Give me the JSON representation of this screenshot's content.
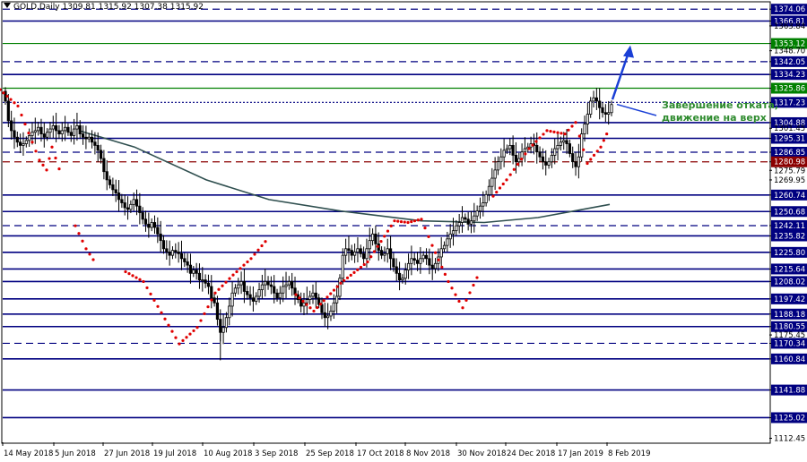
{
  "header": {
    "symbol": "GOLD,Daily",
    "ohlc": "1309.81 1315.92 1307.38 1315.92"
  },
  "annotation": {
    "line1": "Завершение отката,",
    "line2": "движение на верх"
  },
  "colors": {
    "candle": "#000000",
    "sar": "#e00000",
    "ma": "#2f4f4f",
    "support_line": "#000080",
    "green_line": "#008000",
    "arrow": "#1a3fd6",
    "note": "#2e8b2e",
    "label_box": "#000080",
    "label_box_green": "#008000",
    "label_box_red": "#8b0000"
  },
  "chart_data": {
    "type": "candlestick",
    "y_range": [
      1110,
      1378
    ],
    "price_ticks": [
      "1374.06",
      "1366.81",
      "1363.84",
      "1353.12",
      "1348.70",
      "1342.05",
      "1334.23",
      "1325.86",
      "1317.23",
      "1304.88",
      "1301.45",
      "1295.31",
      "1286.85",
      "1280.98",
      "1275.79",
      "1269.95",
      "1260.74",
      "1250.68",
      "1242.11",
      "1235.82",
      "1225.80",
      "1215.64",
      "1208.02",
      "1197.42",
      "1188.18",
      "1180.55",
      "1175.45",
      "1170.34",
      "1160.84",
      "1141.88",
      "1125.02",
      "1112.45"
    ],
    "boxed_levels": [
      {
        "value": 1374.06,
        "label": "1374.06",
        "style": "dashed",
        "color": "navy"
      },
      {
        "value": 1366.81,
        "label": "1366.81",
        "style": "solid",
        "color": "navy"
      },
      {
        "value": 1353.12,
        "label": "1353.12",
        "style": "solid",
        "color": "green"
      },
      {
        "value": 1342.05,
        "label": "1342.05",
        "style": "dashed",
        "color": "navy"
      },
      {
        "value": 1334.23,
        "label": "1334.23",
        "style": "solid",
        "color": "navy"
      },
      {
        "value": 1325.86,
        "label": "1325.86",
        "style": "solid",
        "color": "green"
      },
      {
        "value": 1317.23,
        "label": "1317.23",
        "style": "dotted",
        "color": "navy"
      },
      {
        "value": 1304.88,
        "label": "1304.88",
        "style": "solid",
        "color": "navy"
      },
      {
        "value": 1295.31,
        "label": "1295.31",
        "style": "solid",
        "color": "navy"
      },
      {
        "value": 1286.85,
        "label": "1286.85",
        "style": "dashed",
        "color": "navy"
      },
      {
        "value": 1280.98,
        "label": "1280.98",
        "style": "dashed",
        "color": "red"
      },
      {
        "value": 1260.74,
        "label": "1260.74",
        "style": "solid",
        "color": "navy"
      },
      {
        "value": 1250.68,
        "label": "1250.68",
        "style": "solid",
        "color": "navy"
      },
      {
        "value": 1242.11,
        "label": "1242.11",
        "style": "dashed",
        "color": "navy"
      },
      {
        "value": 1235.82,
        "label": "1235.82",
        "style": "solid",
        "color": "navy"
      },
      {
        "value": 1225.8,
        "label": "1225.80",
        "style": "solid",
        "color": "navy"
      },
      {
        "value": 1215.64,
        "label": "1215.64",
        "style": "solid",
        "color": "navy"
      },
      {
        "value": 1208.02,
        "label": "1208.02",
        "style": "solid",
        "color": "navy"
      },
      {
        "value": 1197.42,
        "label": "1197.42",
        "style": "solid",
        "color": "navy"
      },
      {
        "value": 1188.18,
        "label": "1188.18",
        "style": "solid",
        "color": "navy"
      },
      {
        "value": 1180.55,
        "label": "1180.55",
        "style": "solid",
        "color": "navy"
      },
      {
        "value": 1170.34,
        "label": "1170.34",
        "style": "dashed",
        "color": "navy"
      },
      {
        "value": 1160.84,
        "label": "1160.84",
        "style": "solid",
        "color": "navy"
      },
      {
        "value": 1141.88,
        "label": "1141.88",
        "style": "solid",
        "color": "navy"
      },
      {
        "value": 1125.02,
        "label": "1125.02",
        "style": "solid",
        "color": "navy"
      }
    ],
    "x_ticks": [
      "14 May 2018",
      "5 Jun 2018",
      "27 Jun 2018",
      "19 Jul 2018",
      "10 Aug 2018",
      "3 Sep 2018",
      "25 Sep 2018",
      "17 Oct 2018",
      "8 Nov 2018",
      "30 Nov 2018",
      "24 Dec 2018",
      "17 Jan 2019",
      "8 Feb 2019"
    ],
    "close": [
      1318,
      1306,
      1300,
      1296,
      1293,
      1291,
      1292,
      1294,
      1297,
      1299,
      1300,
      1302,
      1298,
      1296,
      1299,
      1301,
      1303,
      1300,
      1298,
      1300,
      1302,
      1299,
      1297,
      1301,
      1303,
      1298,
      1296,
      1295,
      1296,
      1293,
      1291,
      1288,
      1283,
      1275,
      1270,
      1267,
      1264,
      1262,
      1258,
      1256,
      1253,
      1252,
      1255,
      1258,
      1254,
      1250,
      1246,
      1243,
      1241,
      1244,
      1241,
      1237,
      1233,
      1228,
      1226,
      1224,
      1227,
      1226,
      1225,
      1222,
      1220,
      1218,
      1213,
      1215,
      1213,
      1209,
      1209,
      1207,
      1205,
      1198,
      1195,
      1185,
      1177,
      1180,
      1186,
      1193,
      1201,
      1204,
      1206,
      1208,
      1202,
      1200,
      1198,
      1196,
      1199,
      1203,
      1206,
      1208,
      1206,
      1205,
      1201,
      1198,
      1201,
      1205,
      1206,
      1208,
      1204,
      1200,
      1197,
      1193,
      1195,
      1197,
      1199,
      1201,
      1198,
      1194,
      1189,
      1186,
      1187,
      1190,
      1195,
      1199,
      1210,
      1224,
      1228,
      1227,
      1224,
      1226,
      1228,
      1225,
      1222,
      1228,
      1233,
      1237,
      1231,
      1227,
      1224,
      1225,
      1228,
      1222,
      1217,
      1213,
      1209,
      1210,
      1215,
      1219,
      1222,
      1221,
      1219,
      1222,
      1224,
      1222,
      1218,
      1216,
      1219,
      1223,
      1228,
      1230,
      1234,
      1237,
      1239,
      1242,
      1244,
      1247,
      1246,
      1243,
      1245,
      1248,
      1251,
      1254,
      1256,
      1261,
      1266,
      1271,
      1276,
      1281,
      1284,
      1288,
      1289,
      1291,
      1285,
      1281,
      1283,
      1287,
      1289,
      1290,
      1292,
      1291,
      1287,
      1284,
      1281,
      1279,
      1281,
      1285,
      1289,
      1291,
      1293,
      1294,
      1292,
      1286,
      1281,
      1278,
      1284,
      1298,
      1304,
      1310,
      1318,
      1320,
      1318,
      1314,
      1311,
      1310,
      1311,
      1315.9
    ],
    "sar_points": [
      [
        0,
        1325
      ],
      [
        20,
        1315
      ],
      [
        28,
        1304
      ],
      [
        44,
        1282
      ],
      [
        52,
        1276
      ],
      [
        58,
        1290
      ],
      [
        70,
        1270
      ],
      [
        84,
        1242
      ],
      [
        96,
        1228
      ],
      [
        108,
        1218
      ],
      [
        120,
        1248
      ],
      [
        140,
        1214
      ],
      [
        160,
        1208
      ],
      [
        180,
        1189
      ],
      [
        200,
        1170
      ],
      [
        220,
        1180
      ],
      [
        240,
        1201
      ],
      [
        260,
        1212
      ],
      [
        280,
        1222
      ],
      [
        300,
        1235
      ],
      [
        330,
        1200
      ],
      [
        350,
        1190
      ],
      [
        380,
        1207
      ],
      [
        410,
        1220
      ],
      [
        440,
        1245
      ],
      [
        455,
        1244
      ],
      [
        470,
        1246
      ],
      [
        482,
        1230
      ],
      [
        500,
        1208
      ],
      [
        516,
        1192
      ],
      [
        536,
        1215
      ],
      [
        550,
        1260
      ],
      [
        565,
        1270
      ],
      [
        590,
        1289
      ],
      [
        610,
        1300
      ],
      [
        630,
        1298
      ],
      [
        642,
        1305
      ],
      [
        655,
        1280
      ],
      [
        670,
        1290
      ],
      [
        680,
        1302
      ]
    ],
    "ma_points": [
      [
        88,
        1300
      ],
      [
        150,
        1290
      ],
      [
        230,
        1270
      ],
      [
        300,
        1258
      ],
      [
        380,
        1251
      ],
      [
        470,
        1245
      ],
      [
        540,
        1244
      ],
      [
        600,
        1247
      ],
      [
        640,
        1251
      ],
      [
        680,
        1255
      ]
    ],
    "target_arrow": {
      "from_value": 1319,
      "to_value": 1352
    }
  }
}
